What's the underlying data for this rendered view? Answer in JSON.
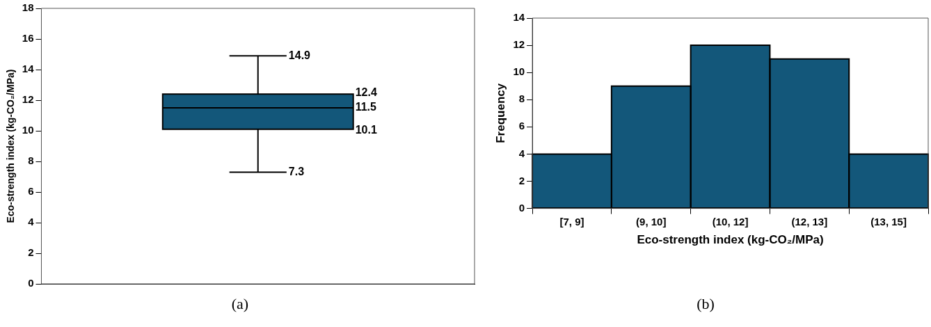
{
  "chart_data": [
    {
      "type": "box",
      "categories": [
        null
      ],
      "color": "#13577a",
      "boxes": [
        {
          "low": 7.3,
          "q1": 10.1,
          "median": 11.5,
          "q3": 12.4,
          "high": 14.9
        }
      ],
      "ylabel": "Eco-strength index (kg-CO₂/MPa)",
      "ylim": [
        0,
        18
      ],
      "yticks": [
        0,
        2,
        4,
        6,
        8,
        10,
        12,
        14,
        16,
        18
      ],
      "grid": false,
      "legend": false,
      "tick_labels": "y",
      "data_labels": true,
      "annotations": [
        "14.9",
        "12.4",
        "11.5",
        "10.1",
        "7.3",
        "(a)"
      ]
    },
    {
      "type": "bar",
      "categories": [
        "[7, 9]",
        "(9, 10]",
        "(10, 12]",
        "(12, 13]",
        "(13, 15]"
      ],
      "values": [
        4,
        9,
        12,
        11,
        4
      ],
      "color": "#13577a",
      "xlabel": "Eco-strength index (kg-CO₂/MPa)",
      "ylabel": "Frequency",
      "ylim": [
        0,
        14
      ],
      "yticks": [
        0,
        2,
        4,
        6,
        8,
        10,
        12,
        14
      ],
      "grid": false,
      "legend": false,
      "annotations": [
        "(b)"
      ]
    }
  ]
}
